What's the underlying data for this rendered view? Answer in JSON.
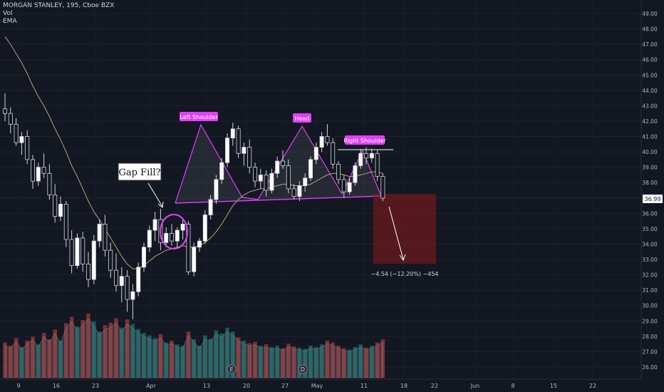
{
  "header": {
    "symbol_line": "MORGAN STANLEY, 195, Cboe BZX",
    "indicator_vol": "Vol",
    "indicator_ema": "EMA"
  },
  "current_price_label": "36.99",
  "chart_data": {
    "type": "candlestick",
    "y_axis": {
      "ticks": [
        26,
        27,
        28,
        29,
        30,
        31,
        32,
        33,
        34,
        35,
        36,
        37,
        38,
        39,
        40,
        41,
        42,
        43,
        44,
        45,
        46,
        47,
        48,
        49
      ],
      "tick_labels": [
        "26.00",
        "27.00",
        "28.00",
        "29.00",
        "30.00",
        "31.00",
        "32.00",
        "33.00",
        "34.00",
        "35.00",
        "36.00",
        "37.00",
        "38.00",
        "39.00",
        "40.00",
        "41.00",
        "42.00",
        "43.00",
        "44.00",
        "45.00",
        "46.00",
        "47.00",
        "48.00",
        "49.00"
      ],
      "range": [
        25.3,
        49.9
      ]
    },
    "x_axis": {
      "tick_labels": [
        "9",
        "16",
        "23",
        "Apr",
        "13",
        "20",
        "27",
        "May",
        "11",
        "18",
        "22",
        "Jun",
        "8",
        "15",
        "22"
      ]
    },
    "candles": [
      [
        42.8,
        43.8,
        42.0,
        42.5
      ],
      [
        42.5,
        42.9,
        41.2,
        41.8
      ],
      [
        41.8,
        42.2,
        40.4,
        40.6
      ],
      [
        40.6,
        41.3,
        39.8,
        41.0
      ],
      [
        41.0,
        41.4,
        39.2,
        39.5
      ],
      [
        39.5,
        39.8,
        37.6,
        38.1
      ],
      [
        38.1,
        39.3,
        37.8,
        39.0
      ],
      [
        39.0,
        39.9,
        38.3,
        38.6
      ],
      [
        38.6,
        39.2,
        36.9,
        37.2
      ],
      [
        37.2,
        37.9,
        35.4,
        35.8
      ],
      [
        35.8,
        37.1,
        35.5,
        36.6
      ],
      [
        36.6,
        36.8,
        33.8,
        34.3
      ],
      [
        34.3,
        34.9,
        32.1,
        32.6
      ],
      [
        32.6,
        34.7,
        32.4,
        34.4
      ],
      [
        34.4,
        34.8,
        32.2,
        32.7
      ],
      [
        32.7,
        33.5,
        31.2,
        31.7
      ],
      [
        31.7,
        34.6,
        31.4,
        34.2
      ],
      [
        34.2,
        35.6,
        33.8,
        35.3
      ],
      [
        35.3,
        35.9,
        33.2,
        33.6
      ],
      [
        33.6,
        34.1,
        31.8,
        32.3
      ],
      [
        32.3,
        33.4,
        30.9,
        31.3
      ],
      [
        31.3,
        32.5,
        30.2,
        31.9
      ],
      [
        31.9,
        32.3,
        29.6,
        30.4
      ],
      [
        30.4,
        31.4,
        29.1,
        30.9
      ],
      [
        30.9,
        32.8,
        30.6,
        32.5
      ],
      [
        32.5,
        34.1,
        32.2,
        33.8
      ],
      [
        33.8,
        35.2,
        33.5,
        34.9
      ],
      [
        34.9,
        36.1,
        34.2,
        35.6
      ],
      [
        35.6,
        36.3,
        33.6,
        34.1
      ],
      [
        34.1,
        35.1,
        33.8,
        34.7
      ],
      [
        34.7,
        35.3,
        33.9,
        34.2
      ],
      [
        34.2,
        35.1,
        33.7,
        34.9
      ],
      [
        34.9,
        35.6,
        34.3,
        35.3
      ],
      [
        35.3,
        35.5,
        32.0,
        32.2
      ],
      [
        32.2,
        34.1,
        31.9,
        33.8
      ],
      [
        33.8,
        34.4,
        33.5,
        34.2
      ],
      [
        34.2,
        36.2,
        34.0,
        35.9
      ],
      [
        35.9,
        37.2,
        35.6,
        36.9
      ],
      [
        36.9,
        38.5,
        36.6,
        38.2
      ],
      [
        38.2,
        39.6,
        37.9,
        39.3
      ],
      [
        39.3,
        41.2,
        39.0,
        40.9
      ],
      [
        40.9,
        41.9,
        40.4,
        41.5
      ],
      [
        41.5,
        41.7,
        39.6,
        39.9
      ],
      [
        39.9,
        40.6,
        39.1,
        40.3
      ],
      [
        40.3,
        40.8,
        38.6,
        39.0
      ],
      [
        39.0,
        39.3,
        37.7,
        38.1
      ],
      [
        38.1,
        38.9,
        37.6,
        38.5
      ],
      [
        38.5,
        38.8,
        37.1,
        37.5
      ],
      [
        37.5,
        38.9,
        37.3,
        38.6
      ],
      [
        38.6,
        39.7,
        38.3,
        39.4
      ],
      [
        39.4,
        40.1,
        38.9,
        39.1
      ],
      [
        39.1,
        39.5,
        37.3,
        37.6
      ],
      [
        37.6,
        37.9,
        36.9,
        37.1
      ],
      [
        37.1,
        38.1,
        36.8,
        37.8
      ],
      [
        37.8,
        38.6,
        37.4,
        38.3
      ],
      [
        38.3,
        39.7,
        38.1,
        39.5
      ],
      [
        39.5,
        40.6,
        39.2,
        40.3
      ],
      [
        40.3,
        41.3,
        40.0,
        41.0
      ],
      [
        41.0,
        41.8,
        40.4,
        40.6
      ],
      [
        40.6,
        40.9,
        38.9,
        39.2
      ],
      [
        39.2,
        39.4,
        37.9,
        38.2
      ],
      [
        38.2,
        38.5,
        37.0,
        37.4
      ],
      [
        37.4,
        38.3,
        37.2,
        38.0
      ],
      [
        38.0,
        39.3,
        37.8,
        39.1
      ],
      [
        39.1,
        40.2,
        38.9,
        39.9
      ],
      [
        39.9,
        40.3,
        39.2,
        39.6
      ],
      [
        39.6,
        40.2,
        39.3,
        39.9
      ],
      [
        39.9,
        40.1,
        38.1,
        38.4
      ],
      [
        38.4,
        38.6,
        36.8,
        36.99
      ]
    ],
    "volume": [
      0.55,
      0.5,
      0.62,
      0.48,
      0.58,
      0.64,
      0.52,
      0.7,
      0.6,
      0.75,
      0.58,
      0.85,
      0.95,
      0.8,
      0.9,
      1.0,
      0.88,
      0.72,
      0.82,
      0.86,
      0.93,
      0.78,
      0.91,
      0.84,
      0.76,
      0.7,
      0.66,
      0.62,
      0.68,
      0.55,
      0.58,
      0.52,
      0.5,
      0.72,
      0.6,
      0.5,
      0.66,
      0.61,
      0.74,
      0.69,
      0.78,
      0.72,
      0.63,
      0.58,
      0.54,
      0.56,
      0.5,
      0.52,
      0.48,
      0.5,
      0.46,
      0.53,
      0.49,
      0.47,
      0.45,
      0.5,
      0.48,
      0.52,
      0.58,
      0.55,
      0.5,
      0.46,
      0.44,
      0.48,
      0.52,
      0.47,
      0.5,
      0.55,
      0.6
    ],
    "ema": [
      47.5,
      47.0,
      46.4,
      45.8,
      45.1,
      44.3,
      43.6,
      43.0,
      42.3,
      41.5,
      40.8,
      40.0,
      39.1,
      38.4,
      37.6,
      36.8,
      36.1,
      35.6,
      35.0,
      34.4,
      33.8,
      33.2,
      32.7,
      32.4,
      32.4,
      32.6,
      32.9,
      33.2,
      33.4,
      33.6,
      33.7,
      33.8,
      33.9,
      33.8,
      33.8,
      33.9,
      34.1,
      34.4,
      34.8,
      35.3,
      35.9,
      36.5,
      36.9,
      37.2,
      37.4,
      37.5,
      37.6,
      37.6,
      37.7,
      37.8,
      37.9,
      37.9,
      37.8,
      37.8,
      37.8,
      37.9,
      38.1,
      38.3,
      38.5,
      38.6,
      38.6,
      38.5,
      38.4,
      38.4,
      38.5,
      38.6,
      38.7,
      38.7,
      38.6
    ],
    "annotations": {
      "gap_fill": "Gap Fill?",
      "left_shoulder": "Left Shoulder",
      "head": "Head",
      "right_shoulder": "Right Shoulder",
      "projection": "−4.54 (−12.20%) −454",
      "event_e": "E",
      "event_d": "D"
    }
  }
}
